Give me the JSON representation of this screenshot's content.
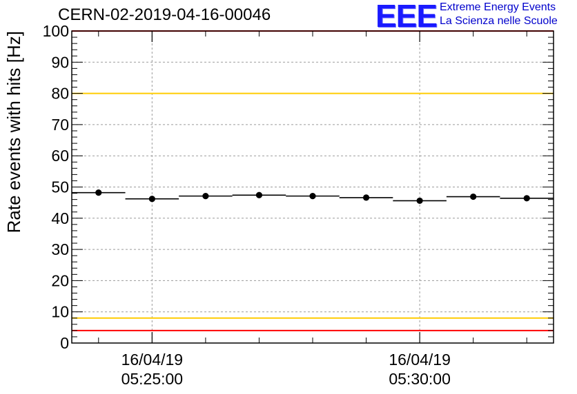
{
  "title": "CERN-02-2019-04-16-00046",
  "logo": {
    "mark": "EEE",
    "line1": "Extreme Energy Events",
    "line2": "La Scienza nelle Scuole"
  },
  "colors": {
    "red_limit": "#ff0000",
    "yellow_limit": "#ffcc00",
    "logo_blue": "#1a1aff",
    "data": "#000000"
  },
  "chart_data": {
    "type": "scatter",
    "title": "CERN-02-2019-04-16-00046",
    "xlabel": "",
    "ylabel": "Rate events with hits [Hz]",
    "xlim": [
      "16/04/19 05:23:30",
      "16/04/19 05:32:30"
    ],
    "ylim": [
      0,
      100
    ],
    "grid": true,
    "yticks": [
      0,
      10,
      20,
      30,
      40,
      50,
      60,
      70,
      80,
      90,
      100
    ],
    "xticks": [
      {
        "date": "16/04/19",
        "time": "05:25:00"
      },
      {
        "date": "16/04/19",
        "time": "05:30:00"
      }
    ],
    "limit_lines": [
      {
        "y": 100,
        "color": "#ff0000"
      },
      {
        "y": 80,
        "color": "#ffcc00"
      },
      {
        "y": 8,
        "color": "#ffcc00"
      },
      {
        "y": 4,
        "color": "#ff0000"
      }
    ],
    "points": [
      {
        "start": "05:23:30",
        "end": "05:24:30",
        "y": 48.2
      },
      {
        "start": "05:24:30",
        "end": "05:25:30",
        "y": 46.2
      },
      {
        "start": "05:25:30",
        "end": "05:26:30",
        "y": 47.1
      },
      {
        "start": "05:26:30",
        "end": "05:27:30",
        "y": 47.4
      },
      {
        "start": "05:27:30",
        "end": "05:28:30",
        "y": 47.1
      },
      {
        "start": "05:28:30",
        "end": "05:29:30",
        "y": 46.6
      },
      {
        "start": "05:29:30",
        "end": "05:30:30",
        "y": 45.6
      },
      {
        "start": "05:30:30",
        "end": "05:31:30",
        "y": 46.9
      },
      {
        "start": "05:31:30",
        "end": "05:32:30",
        "y": 46.4
      }
    ]
  }
}
